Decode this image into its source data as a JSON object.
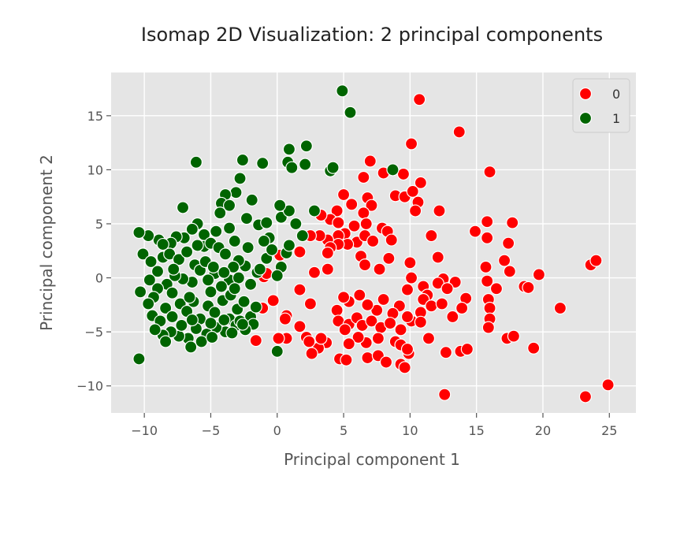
{
  "chart_data": {
    "type": "scatter",
    "title": "Isomap 2D Visualization: 2 principal components",
    "xlabel": "Principal component 1",
    "ylabel": "Principal component 2",
    "xlim": [
      -12.5,
      27
    ],
    "ylim": [
      -12.5,
      19
    ],
    "xticks": [
      -10,
      -5,
      0,
      5,
      10,
      15,
      20,
      25
    ],
    "xtick_labels": [
      "−10",
      "−5",
      "0",
      "5",
      "10",
      "15",
      "20",
      "25"
    ],
    "yticks": [
      -10,
      -5,
      0,
      5,
      10,
      15
    ],
    "ytick_labels": [
      "−10",
      "−5",
      "0",
      "5",
      "10",
      "15"
    ],
    "grid": true,
    "legend_position": "top-right",
    "legend": [
      "0",
      "1"
    ],
    "colors": {
      "0": "#ff0000",
      "1": "#006400",
      "background": "#e5e5e5",
      "grid": "#ffffff",
      "marker_edge": "#ffffff"
    },
    "series": [
      {
        "name": "0",
        "color": "#ff0000",
        "points": [
          [
            10.7,
            16.5
          ],
          [
            13.7,
            13.5
          ],
          [
            10.1,
            12.4
          ],
          [
            16.0,
            9.8
          ],
          [
            7.0,
            10.8
          ],
          [
            8.0,
            9.7
          ],
          [
            9.5,
            9.6
          ],
          [
            10.8,
            8.8
          ],
          [
            6.5,
            9.3
          ],
          [
            5.0,
            7.7
          ],
          [
            5.6,
            6.8
          ],
          [
            6.8,
            7.4
          ],
          [
            7.1,
            6.7
          ],
          [
            8.9,
            7.6
          ],
          [
            9.6,
            7.5
          ],
          [
            10.2,
            8.0
          ],
          [
            10.6,
            7.0
          ],
          [
            10.4,
            6.2
          ],
          [
            12.2,
            6.2
          ],
          [
            6.5,
            6.0
          ],
          [
            4.5,
            6.2
          ],
          [
            4.0,
            5.4
          ],
          [
            3.3,
            5.8
          ],
          [
            4.6,
            5.1
          ],
          [
            5.8,
            4.8
          ],
          [
            6.7,
            5.0
          ],
          [
            7.9,
            4.6
          ],
          [
            8.3,
            4.3
          ],
          [
            5.1,
            4.1
          ],
          [
            4.6,
            3.9
          ],
          [
            3.8,
            3.5
          ],
          [
            3.2,
            3.9
          ],
          [
            2.5,
            3.9
          ],
          [
            6.0,
            3.3
          ],
          [
            5.3,
            3.1
          ],
          [
            6.6,
            3.9
          ],
          [
            4.6,
            3.1
          ],
          [
            4.0,
            2.8
          ],
          [
            3.8,
            2.3
          ],
          [
            7.2,
            3.4
          ],
          [
            8.6,
            3.5
          ],
          [
            11.6,
            3.9
          ],
          [
            14.9,
            4.3
          ],
          [
            15.8,
            5.2
          ],
          [
            17.7,
            5.1
          ],
          [
            15.8,
            3.7
          ],
          [
            17.4,
            3.2
          ],
          [
            8.4,
            1.8
          ],
          [
            6.3,
            2.0
          ],
          [
            6.6,
            1.2
          ],
          [
            2.8,
            0.5
          ],
          [
            3.8,
            0.8
          ],
          [
            7.7,
            0.8
          ],
          [
            10.0,
            1.4
          ],
          [
            12.1,
            1.9
          ],
          [
            15.7,
            1.0
          ],
          [
            17.1,
            1.6
          ],
          [
            17.5,
            0.6
          ],
          [
            10.1,
            0.0
          ],
          [
            12.5,
            -0.1
          ],
          [
            13.4,
            -0.4
          ],
          [
            15.8,
            -0.3
          ],
          [
            18.6,
            -0.8
          ],
          [
            18.9,
            -0.9
          ],
          [
            19.7,
            0.3
          ],
          [
            23.6,
            1.2
          ],
          [
            24.0,
            1.6
          ],
          [
            16.5,
            -1.0
          ],
          [
            15.9,
            -2.0
          ],
          [
            16.0,
            -2.8
          ],
          [
            9.8,
            -1.1
          ],
          [
            11.0,
            -0.8
          ],
          [
            11.3,
            -1.6
          ],
          [
            12.1,
            -0.5
          ],
          [
            12.8,
            -1.0
          ],
          [
            14.2,
            -1.9
          ],
          [
            13.9,
            -2.8
          ],
          [
            11.0,
            -2.0
          ],
          [
            11.6,
            -2.6
          ],
          [
            12.4,
            -2.4
          ],
          [
            13.2,
            -3.6
          ],
          [
            10.8,
            -3.2
          ],
          [
            10.1,
            -4.0
          ],
          [
            9.2,
            -2.6
          ],
          [
            8.7,
            -3.3
          ],
          [
            8.0,
            -2.0
          ],
          [
            7.5,
            -3.0
          ],
          [
            6.8,
            -2.5
          ],
          [
            6.2,
            -1.6
          ],
          [
            5.4,
            -2.2
          ],
          [
            5.0,
            -1.8
          ],
          [
            4.5,
            -3.0
          ],
          [
            4.6,
            -4.0
          ],
          [
            5.4,
            -4.3
          ],
          [
            6.0,
            -3.7
          ],
          [
            6.4,
            -4.4
          ],
          [
            7.1,
            -4.0
          ],
          [
            7.8,
            -4.6
          ],
          [
            8.5,
            -4.2
          ],
          [
            9.3,
            -4.8
          ],
          [
            9.8,
            -3.6
          ],
          [
            10.8,
            -4.1
          ],
          [
            11.4,
            -5.6
          ],
          [
            8.9,
            -5.9
          ],
          [
            7.6,
            -5.6
          ],
          [
            6.7,
            -6.0
          ],
          [
            6.1,
            -5.5
          ],
          [
            5.1,
            -4.8
          ],
          [
            5.4,
            -6.1
          ],
          [
            4.7,
            -7.5
          ],
          [
            5.2,
            -7.6
          ],
          [
            6.8,
            -7.4
          ],
          [
            7.6,
            -7.2
          ],
          [
            8.2,
            -7.8
          ],
          [
            9.3,
            -8.0
          ],
          [
            9.6,
            -8.3
          ],
          [
            9.9,
            -7.0
          ],
          [
            9.3,
            -6.2
          ],
          [
            9.8,
            -6.6
          ],
          [
            3.7,
            -6.0
          ],
          [
            3.1,
            -6.5
          ],
          [
            2.6,
            -7.0
          ],
          [
            2.2,
            -5.5
          ],
          [
            2.4,
            -5.9
          ],
          [
            1.7,
            -4.5
          ],
          [
            0.7,
            -3.5
          ],
          [
            0.6,
            -3.8
          ],
          [
            0.7,
            -5.6
          ],
          [
            0.1,
            -5.6
          ],
          [
            -0.3,
            -2.1
          ],
          [
            -1.1,
            -2.8
          ],
          [
            -1.6,
            -5.8
          ],
          [
            -1.0,
            0.1
          ],
          [
            1.7,
            2.4
          ],
          [
            2.5,
            -2.4
          ],
          [
            1.7,
            -1.1
          ],
          [
            0.2,
            2.1
          ],
          [
            -0.8,
            0.4
          ],
          [
            3.3,
            -5.6
          ],
          [
            12.7,
            -6.9
          ],
          [
            12.6,
            -10.8
          ],
          [
            13.8,
            -6.8
          ],
          [
            14.3,
            -6.6
          ],
          [
            16.0,
            -3.8
          ],
          [
            15.9,
            -4.6
          ],
          [
            17.3,
            -5.6
          ],
          [
            17.8,
            -5.4
          ],
          [
            19.3,
            -6.5
          ],
          [
            21.3,
            -2.8
          ],
          [
            23.2,
            -11.0
          ],
          [
            24.9,
            -9.9
          ]
        ]
      },
      {
        "name": "1",
        "color": "#006400",
        "points": [
          [
            4.9,
            17.3
          ],
          [
            5.5,
            15.3
          ],
          [
            -6.1,
            10.7
          ],
          [
            -2.6,
            10.9
          ],
          [
            -1.1,
            10.6
          ],
          [
            0.9,
            11.9
          ],
          [
            0.8,
            10.7
          ],
          [
            1.1,
            10.2
          ],
          [
            2.1,
            10.5
          ],
          [
            2.2,
            12.2
          ],
          [
            4.0,
            9.9
          ],
          [
            4.2,
            10.2
          ],
          [
            8.7,
            10.0
          ],
          [
            -2.8,
            9.2
          ],
          [
            -3.1,
            7.9
          ],
          [
            -3.9,
            7.7
          ],
          [
            -1.9,
            7.2
          ],
          [
            -4.2,
            6.9
          ],
          [
            -4.3,
            6.0
          ],
          [
            -7.1,
            6.5
          ],
          [
            -6.0,
            5.0
          ],
          [
            -3.6,
            6.7
          ],
          [
            -2.3,
            5.5
          ],
          [
            -1.4,
            4.9
          ],
          [
            -0.8,
            5.1
          ],
          [
            0.3,
            5.6
          ],
          [
            0.9,
            6.2
          ],
          [
            1.4,
            5.0
          ],
          [
            2.8,
            6.2
          ],
          [
            0.2,
            6.7
          ],
          [
            -0.6,
            3.7
          ],
          [
            1.9,
            3.9
          ],
          [
            0.7,
            2.3
          ],
          [
            0.3,
            1.0
          ],
          [
            0.0,
            0.2
          ],
          [
            -0.8,
            1.8
          ],
          [
            -1.5,
            0.5
          ],
          [
            -2.4,
            1.1
          ],
          [
            -2.9,
            1.6
          ],
          [
            -2.2,
            2.8
          ],
          [
            -3.2,
            3.4
          ],
          [
            -3.6,
            4.6
          ],
          [
            -4.6,
            4.3
          ],
          [
            -5.5,
            4.0
          ],
          [
            -6.4,
            4.5
          ],
          [
            -7.0,
            3.7
          ],
          [
            -7.6,
            3.8
          ],
          [
            -8.0,
            3.2
          ],
          [
            -8.9,
            3.5
          ],
          [
            -9.7,
            3.9
          ],
          [
            -10.4,
            4.2
          ],
          [
            -10.1,
            2.2
          ],
          [
            -9.5,
            1.5
          ],
          [
            -9.0,
            0.6
          ],
          [
            -8.6,
            1.9
          ],
          [
            -8.1,
            2.2
          ],
          [
            -7.4,
            1.7
          ],
          [
            -6.8,
            2.4
          ],
          [
            -6.2,
            1.2
          ],
          [
            -5.5,
            2.9
          ],
          [
            -5.0,
            3.2
          ],
          [
            -4.4,
            2.8
          ],
          [
            -3.9,
            2.2
          ],
          [
            -3.3,
            1.0
          ],
          [
            -3.6,
            -0.2
          ],
          [
            -4.2,
            -0.8
          ],
          [
            -4.7,
            0.4
          ],
          [
            -5.2,
            -0.2
          ],
          [
            -5.8,
            0.7
          ],
          [
            -6.4,
            -0.4
          ],
          [
            -7.1,
            -0.1
          ],
          [
            -7.7,
            0.2
          ],
          [
            -8.3,
            -0.6
          ],
          [
            -9.0,
            -1.0
          ],
          [
            -9.6,
            -0.2
          ],
          [
            -9.3,
            -1.8
          ],
          [
            -9.7,
            -2.4
          ],
          [
            -10.3,
            -1.3
          ],
          [
            -9.4,
            -3.5
          ],
          [
            -8.8,
            -4.0
          ],
          [
            -8.4,
            -2.8
          ],
          [
            -7.9,
            -3.6
          ],
          [
            -7.3,
            -2.4
          ],
          [
            -6.8,
            -3.1
          ],
          [
            -6.3,
            -2.2
          ],
          [
            -5.8,
            -3.8
          ],
          [
            -5.2,
            -2.6
          ],
          [
            -4.7,
            -3.2
          ],
          [
            -4.1,
            -2.1
          ],
          [
            -3.6,
            -3.8
          ],
          [
            -3.0,
            -2.9
          ],
          [
            -2.5,
            -2.2
          ],
          [
            -2.0,
            -3.6
          ],
          [
            -1.6,
            -2.7
          ],
          [
            -1.8,
            -4.3
          ],
          [
            -2.4,
            -4.8
          ],
          [
            -3.1,
            -4.4
          ],
          [
            -3.9,
            -5.0
          ],
          [
            -4.6,
            -4.6
          ],
          [
            -5.3,
            -5.2
          ],
          [
            -6.1,
            -4.7
          ],
          [
            -6.7,
            -5.6
          ],
          [
            -7.4,
            -5.4
          ],
          [
            -8.0,
            -5.0
          ],
          [
            -8.6,
            -5.3
          ],
          [
            -9.2,
            -4.8
          ],
          [
            -8.4,
            -5.9
          ],
          [
            -6.5,
            -6.4
          ],
          [
            -5.7,
            -5.9
          ],
          [
            -4.9,
            -5.5
          ],
          [
            -3.4,
            -5.1
          ],
          [
            -2.8,
            -4.0
          ],
          [
            -10.4,
            -7.5
          ],
          [
            -0.0,
            -6.8
          ],
          [
            -6.0,
            3.0
          ],
          [
            -5.4,
            1.5
          ],
          [
            -4.8,
            1.0
          ],
          [
            -4.0,
            0.5
          ],
          [
            -2.9,
            0.0
          ],
          [
            -2.0,
            -0.6
          ],
          [
            -6.6,
            -1.8
          ],
          [
            -7.9,
            -1.4
          ],
          [
            -5.0,
            -1.3
          ],
          [
            -3.5,
            -1.6
          ],
          [
            -1.3,
            0.8
          ],
          [
            0.9,
            3.0
          ],
          [
            -0.4,
            2.6
          ],
          [
            -1.0,
            3.4
          ],
          [
            -7.8,
            0.8
          ],
          [
            -8.6,
            3.1
          ],
          [
            -2.6,
            -4.3
          ],
          [
            -4.0,
            -3.9
          ],
          [
            -6.4,
            -3.9
          ],
          [
            -7.2,
            -4.4
          ],
          [
            -5.0,
            -4.2
          ],
          [
            -3.2,
            -1.0
          ]
        ]
      }
    ]
  }
}
